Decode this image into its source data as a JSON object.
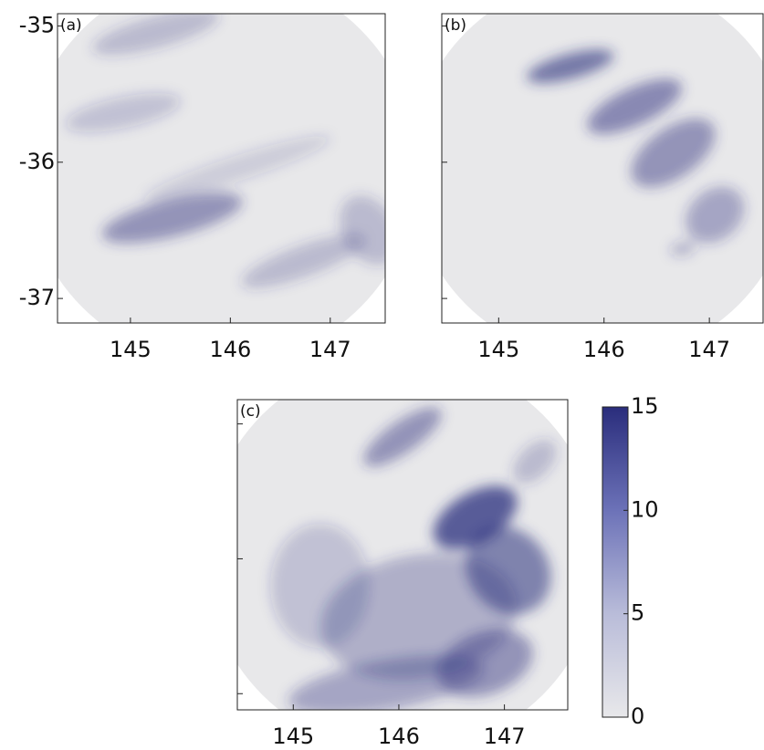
{
  "chart_data": [
    {
      "type": "heatmap",
      "label": "(a)",
      "xlim": [
        144.27,
        147.55
      ],
      "ylim": [
        -37.18,
        -34.91
      ],
      "xticks": [
        145,
        146,
        147
      ],
      "yticks": [
        -37,
        -36,
        -35
      ],
      "ytick_labels": true
    },
    {
      "type": "heatmap",
      "label": "(b)",
      "xlim": [
        144.46,
        147.51
      ],
      "ylim": [
        -37.18,
        -34.91
      ],
      "xticks": [
        145,
        146,
        147
      ],
      "yticks": [
        -37,
        -36,
        -35
      ],
      "ytick_labels": false
    },
    {
      "type": "heatmap",
      "label": "(c)",
      "xlim": [
        144.47,
        147.6
      ],
      "ylim": [
        -37.12,
        -34.82
      ],
      "xticks": [
        145,
        146,
        147
      ],
      "yticks": [
        -37,
        -36,
        -35
      ],
      "ytick_labels": false
    },
    {
      "type": "colorbar",
      "clim": [
        0,
        15
      ],
      "ticks": [
        0,
        5,
        10,
        15
      ],
      "colors": [
        "#e8e8ea",
        "#b9bcd9",
        "#6c72b8",
        "#2a2d7c"
      ]
    }
  ]
}
